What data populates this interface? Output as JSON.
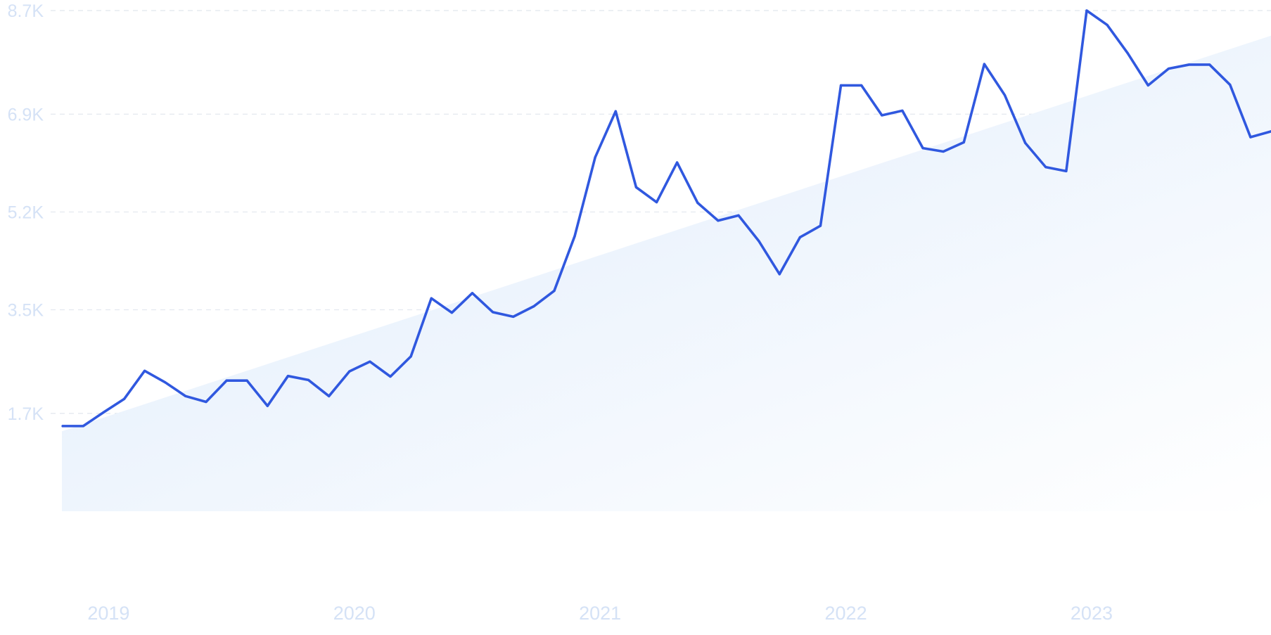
{
  "chart_data": {
    "type": "line",
    "title": "",
    "xlabel": "",
    "ylabel": "",
    "y_ticks": [
      "1.7K",
      "3.5K",
      "5.2K",
      "6.9K",
      "8.7K"
    ],
    "y_tick_values": [
      1700,
      3500,
      5200,
      6900,
      8700
    ],
    "x_ticks": [
      "2019",
      "2020",
      "2021",
      "2022",
      "2023"
    ],
    "x_tick_values": [
      2019.0,
      2020.0,
      2021.0,
      2022.0,
      2023.0
    ],
    "ylim": [
      0,
      8700
    ],
    "xlim": [
      2018.83,
      2023.75
    ],
    "grid": true,
    "legend": "none",
    "trend_area": true,
    "colors": {
      "line": "#3058df",
      "area_start": "#deebfb",
      "area_end": "#ffffff",
      "grid": "#e1e6ee",
      "tick_text": "#d5e2f6"
    },
    "series": [
      {
        "x": [
          "2018-11",
          "2018-12",
          "2019-01",
          "2019-02",
          "2019-03",
          "2019-04",
          "2019-05",
          "2019-06",
          "2019-07",
          "2019-08",
          "2019-09",
          "2019-10",
          "2019-11",
          "2019-12",
          "2020-01",
          "2020-02",
          "2020-03",
          "2020-04",
          "2020-05",
          "2020-06",
          "2020-07",
          "2020-08",
          "2020-09",
          "2020-10",
          "2020-11",
          "2020-12",
          "2021-01",
          "2021-02",
          "2021-03",
          "2021-04",
          "2021-05",
          "2021-06",
          "2021-07",
          "2021-08",
          "2021-09",
          "2021-10",
          "2021-11",
          "2021-12",
          "2022-01",
          "2022-02",
          "2022-03",
          "2022-04",
          "2022-05",
          "2022-06",
          "2022-07",
          "2022-08",
          "2022-09",
          "2022-10",
          "2022-11",
          "2022-12",
          "2023-01",
          "2023-02",
          "2023-03",
          "2023-04",
          "2023-05",
          "2023-06",
          "2023-07",
          "2023-08",
          "2023-09",
          "2023-10"
        ],
        "values": [
          1480,
          1480,
          1720,
          1950,
          2440,
          2240,
          2000,
          1900,
          2270,
          2270,
          1830,
          2350,
          2280,
          2000,
          2430,
          2600,
          2340,
          2690,
          3700,
          3450,
          3790,
          3460,
          3380,
          3560,
          3830,
          4780,
          6150,
          6950,
          5630,
          5370,
          6060,
          5360,
          5050,
          5140,
          4690,
          4120,
          4760,
          4960,
          7400,
          7400,
          6880,
          6960,
          6310,
          6250,
          6410,
          7770,
          7230,
          6400,
          5980,
          5910,
          8700,
          8450,
          7960,
          7400,
          7690,
          7760,
          7760,
          7410,
          6500,
          6600
        ]
      }
    ]
  }
}
